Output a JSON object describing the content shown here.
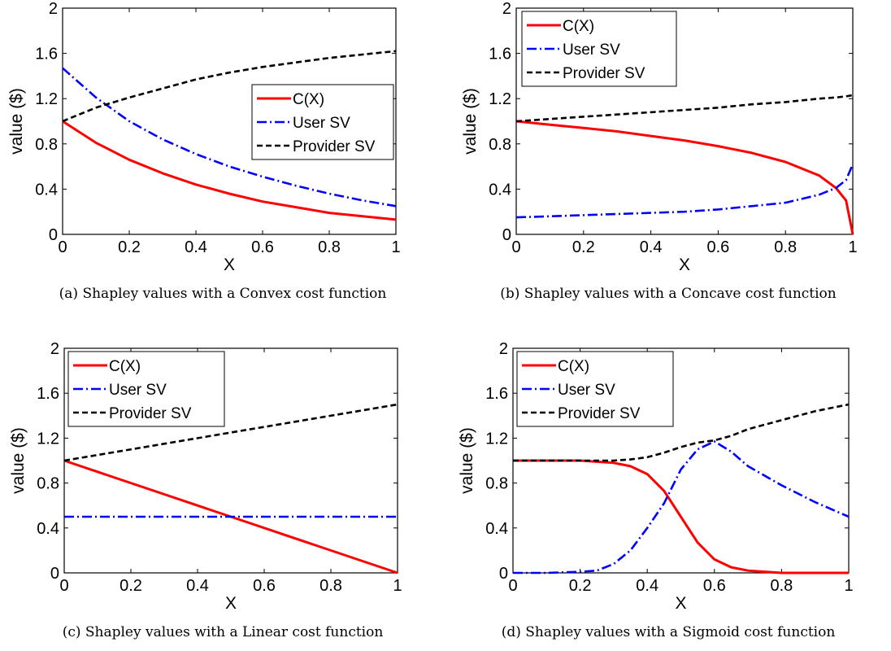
{
  "colors": {
    "cost": "#ff0000",
    "user": "#0000ff",
    "provider": "#000000"
  },
  "chart_data": [
    {
      "id": "a",
      "type": "line",
      "caption": "(a) Shapley values with a Convex cost function",
      "xlabel": "X",
      "ylabel": "value ($)",
      "xlim": [
        0,
        1
      ],
      "ylim": [
        0,
        2
      ],
      "xticks": [
        "0",
        "0.2",
        "0.4",
        "0.6",
        "0.8",
        "1"
      ],
      "yticks": [
        "0",
        "0.4",
        "0.8",
        "1.2",
        "1.6",
        "2"
      ],
      "legend_position": "center-right",
      "x": [
        0,
        0.1,
        0.2,
        0.3,
        0.4,
        0.5,
        0.6,
        0.7,
        0.8,
        0.9,
        1.0
      ],
      "series": [
        {
          "name": "C(X)",
          "style": "solid",
          "color": "cost",
          "values": [
            1.0,
            0.81,
            0.66,
            0.54,
            0.44,
            0.36,
            0.29,
            0.24,
            0.19,
            0.16,
            0.13
          ]
        },
        {
          "name": "User SV",
          "style": "dashdot",
          "color": "user",
          "values": [
            1.47,
            1.21,
            1.0,
            0.84,
            0.71,
            0.6,
            0.51,
            0.43,
            0.36,
            0.3,
            0.25
          ]
        },
        {
          "name": "Provider SV",
          "style": "dashed",
          "color": "provider",
          "values": [
            1.0,
            1.12,
            1.21,
            1.29,
            1.37,
            1.43,
            1.48,
            1.52,
            1.56,
            1.59,
            1.62
          ]
        }
      ]
    },
    {
      "id": "b",
      "type": "line",
      "caption": "(b) Shapley values with a Concave cost function",
      "xlabel": "X",
      "ylabel": "value ($)",
      "xlim": [
        0,
        1
      ],
      "ylim": [
        0,
        2
      ],
      "xticks": [
        "0",
        "0.2",
        "0.4",
        "0.6",
        "0.8",
        "1"
      ],
      "yticks": [
        "0",
        "0.4",
        "0.8",
        "1.2",
        "1.6",
        "2"
      ],
      "legend_position": "top-left",
      "x": [
        0,
        0.1,
        0.2,
        0.3,
        0.4,
        0.5,
        0.6,
        0.7,
        0.8,
        0.9,
        0.95,
        0.98,
        1.0
      ],
      "series": [
        {
          "name": "C(X)",
          "style": "solid",
          "color": "cost",
          "values": [
            1.0,
            0.97,
            0.94,
            0.91,
            0.87,
            0.83,
            0.78,
            0.72,
            0.64,
            0.52,
            0.41,
            0.3,
            0.0
          ]
        },
        {
          "name": "User SV",
          "style": "dashdot",
          "color": "user",
          "values": [
            0.15,
            0.16,
            0.17,
            0.18,
            0.19,
            0.2,
            0.22,
            0.25,
            0.28,
            0.35,
            0.41,
            0.48,
            0.62
          ]
        },
        {
          "name": "Provider SV",
          "style": "dashed",
          "color": "provider",
          "values": [
            1.0,
            1.02,
            1.04,
            1.06,
            1.08,
            1.1,
            1.12,
            1.15,
            1.17,
            1.2,
            1.21,
            1.22,
            1.23
          ]
        }
      ]
    },
    {
      "id": "c",
      "type": "line",
      "caption": "(c) Shapley values with a Linear cost function",
      "xlabel": "X",
      "ylabel": "value ($)",
      "xlim": [
        0,
        1
      ],
      "ylim": [
        0,
        2
      ],
      "xticks": [
        "0",
        "0.2",
        "0.4",
        "0.6",
        "0.8",
        "1"
      ],
      "yticks": [
        "0",
        "0.4",
        "0.8",
        "1.2",
        "1.6",
        "2"
      ],
      "legend_position": "top-left",
      "x": [
        0,
        0.25,
        0.5,
        0.75,
        1.0
      ],
      "series": [
        {
          "name": "C(X)",
          "style": "solid",
          "color": "cost",
          "values": [
            1.0,
            0.75,
            0.5,
            0.25,
            0.0
          ]
        },
        {
          "name": "User SV",
          "style": "dashdot",
          "color": "user",
          "values": [
            0.5,
            0.5,
            0.5,
            0.5,
            0.5
          ]
        },
        {
          "name": "Provider SV",
          "style": "dashed",
          "color": "provider",
          "values": [
            1.0,
            1.125,
            1.25,
            1.375,
            1.5
          ]
        }
      ]
    },
    {
      "id": "d",
      "type": "line",
      "caption": "(d) Shapley values with a Sigmoid cost function",
      "xlabel": "X",
      "ylabel": "value ($)",
      "xlim": [
        0,
        1
      ],
      "ylim": [
        0,
        2
      ],
      "xticks": [
        "0",
        "0.2",
        "0.4",
        "0.6",
        "0.8",
        "1"
      ],
      "yticks": [
        "0",
        "0.4",
        "0.8",
        "1.2",
        "1.6",
        "2"
      ],
      "legend_position": "top-left",
      "x": [
        0,
        0.1,
        0.2,
        0.25,
        0.3,
        0.35,
        0.4,
        0.45,
        0.5,
        0.55,
        0.6,
        0.65,
        0.7,
        0.8,
        0.9,
        1.0
      ],
      "series": [
        {
          "name": "C(X)",
          "style": "solid",
          "color": "cost",
          "values": [
            1.0,
            1.0,
            1.0,
            0.99,
            0.98,
            0.95,
            0.88,
            0.73,
            0.5,
            0.27,
            0.12,
            0.05,
            0.02,
            0.0,
            0.0,
            0.0
          ]
        },
        {
          "name": "User SV",
          "style": "dashdot",
          "color": "user",
          "values": [
            0.0,
            0.0,
            0.01,
            0.02,
            0.08,
            0.2,
            0.4,
            0.62,
            0.92,
            1.1,
            1.17,
            1.08,
            0.95,
            0.78,
            0.63,
            0.5
          ]
        },
        {
          "name": "Provider SV",
          "style": "dashed",
          "color": "provider",
          "values": [
            1.0,
            1.0,
            1.0,
            1.0,
            1.0,
            1.01,
            1.03,
            1.07,
            1.12,
            1.16,
            1.18,
            1.22,
            1.28,
            1.36,
            1.44,
            1.5
          ]
        }
      ]
    }
  ]
}
